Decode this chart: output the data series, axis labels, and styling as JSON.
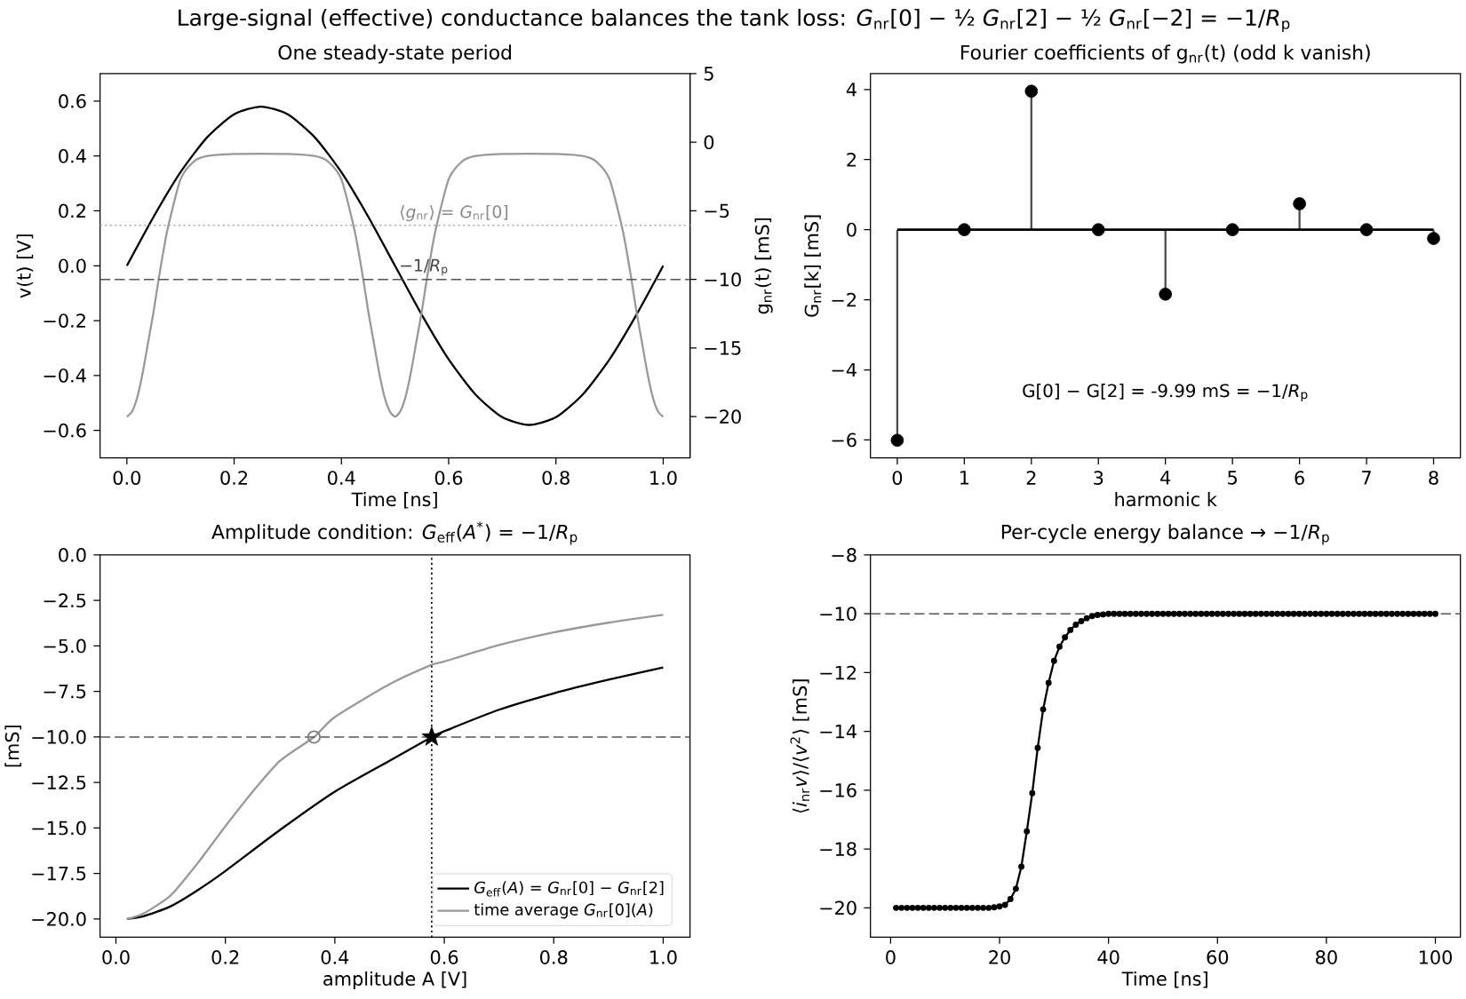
{
  "chart_data": [
    {
      "type": "line",
      "title": "Large-signal (effective) conductance balances the tank loss: *G*$_{nr}$[0] − ½ *G*$_{nr}$[2] − ½ *G*$_{nr}$[−2] = −1/*R*$_{p}$",
      "subtitle": "One steady-state period",
      "xlabel": "Time [ns]",
      "ylabel": "v(t) [V]",
      "y2label": "g$_{nr}$(t) [mS]",
      "xlim": [
        -0.05,
        1.05
      ],
      "xticks": [
        {
          "value": 0,
          "label": "0.0"
        },
        {
          "value": 0.2,
          "label": "0.2"
        },
        {
          "value": 0.4,
          "label": "0.4"
        },
        {
          "value": 0.6,
          "label": "0.6"
        },
        {
          "value": 0.8,
          "label": "0.8"
        },
        {
          "value": 1,
          "label": "1.0"
        }
      ],
      "ylim": [
        -0.7,
        0.7
      ],
      "yticks": [
        {
          "value": -0.6,
          "label": "−0.6"
        },
        {
          "value": -0.4,
          "label": "−0.4"
        },
        {
          "value": -0.2,
          "label": "−0.2"
        },
        {
          "value": 0,
          "label": "0.0"
        },
        {
          "value": 0.2,
          "label": "0.2"
        },
        {
          "value": 0.4,
          "label": "0.4"
        },
        {
          "value": 0.6,
          "label": "0.6"
        }
      ],
      "y2lim": [
        -23,
        5
      ],
      "y2ticks": [
        5,
        0,
        {
          "value": -5,
          "label": "−5"
        },
        {
          "value": -10,
          "label": "−10"
        },
        {
          "value": -15,
          "label": "−15"
        },
        {
          "value": -20,
          "label": "−20"
        }
      ],
      "series": [
        {
          "color": "#000000",
          "x": [
            0,
            0.05,
            0.1,
            0.15,
            0.2,
            0.25,
            0.3,
            0.35,
            0.4,
            0.45,
            0.5,
            0.55,
            0.6,
            0.65,
            0.7,
            0.75,
            0.8,
            0.85,
            0.9,
            0.95,
            1.0
          ],
          "values": [
            0,
            0.179,
            0.341,
            0.469,
            0.552,
            0.58,
            0.552,
            0.469,
            0.341,
            0.179,
            0,
            -0.179,
            -0.341,
            -0.469,
            -0.552,
            -0.58,
            -0.552,
            -0.469,
            -0.341,
            -0.179,
            0
          ]
        },
        {
          "color": "#999999",
          "axis": "y2",
          "x": [
            0,
            0.01,
            0.02,
            0.03,
            0.04,
            0.05,
            0.06,
            0.075,
            0.1,
            0.125,
            0.15,
            0.2,
            0.25,
            0.3,
            0.35,
            0.375,
            0.4,
            0.425,
            0.44,
            0.45,
            0.46,
            0.47,
            0.48,
            0.49,
            0.5,
            0.51,
            0.52,
            0.53,
            0.54,
            0.55,
            0.56,
            0.575,
            0.6,
            0.625,
            0.65,
            0.7,
            0.75,
            0.8,
            0.85,
            0.875,
            0.9,
            0.925,
            0.94,
            0.95,
            0.96,
            0.97,
            0.98,
            0.99,
            1.0
          ],
          "values": [
            -20,
            -19.6,
            -18.5,
            -16.7,
            -14.5,
            -12.3,
            -9.8,
            -6.5,
            -2.7,
            -1.4,
            -1.0,
            -0.85,
            -0.83,
            -0.85,
            -1.0,
            -1.4,
            -2.7,
            -6.5,
            -9.8,
            -12.3,
            -14.5,
            -16.7,
            -18.5,
            -19.6,
            -20,
            -19.6,
            -18.5,
            -16.7,
            -14.5,
            -12.3,
            -9.8,
            -6.5,
            -2.7,
            -1.4,
            -1.0,
            -0.85,
            -0.83,
            -0.85,
            -1.0,
            -1.4,
            -2.7,
            -6.5,
            -9.8,
            -12.3,
            -14.5,
            -16.7,
            -18.5,
            -19.6,
            -20
          ]
        }
      ],
      "ref_lines": [
        {
          "axis": "y2",
          "value": -6.05,
          "label": "⟨*g*$_{nr}$⟩ = *G*$_{nr}$[0]",
          "color": "#aaaaaa",
          "line_style": "dotted"
        },
        {
          "axis": "y2",
          "value": -10,
          "label": "−1/*R*$_{p}$",
          "color": "#555555",
          "line_style": "dashed"
        }
      ]
    },
    {
      "type": "lollipop",
      "title": "Fourier coefficients of g$_{nr}$(t)  (odd k vanish)",
      "xlabel": "harmonic k",
      "ylabel": "G$_{nr}$[k] [mS]",
      "x": [
        0,
        1,
        2,
        3,
        4,
        5,
        6,
        7,
        8
      ],
      "xlim": [
        -0.4,
        8.4
      ],
      "xticks": [
        0,
        1,
        2,
        3,
        4,
        5,
        6,
        7,
        8
      ],
      "ylim": [
        -6.51,
        4.45
      ],
      "yticks": [
        {
          "value": -6,
          "label": "−6"
        },
        {
          "value": -4,
          "label": "−4"
        },
        {
          "value": -2,
          "label": "−2"
        },
        0,
        2,
        4
      ],
      "series": [
        {
          "color": "#000000",
          "values": [
            -6.01,
            0,
            3.95,
            0,
            -1.84,
            0,
            0.74,
            0,
            -0.25
          ]
        }
      ],
      "annotations": [
        "G[0] − G[2] = -9.99 mS = −1/*R*$_{p}$"
      ]
    },
    {
      "type": "line",
      "title": "Amplitude condition: *G*$_{eff}$(*A*$^{*}$) = −1/*R*$_{p}$",
      "xlabel": "amplitude A [V]",
      "ylabel": "[mS]",
      "legend": "bottom right",
      "xlim": [
        -0.029,
        1.049
      ],
      "xticks": [
        {
          "value": 0,
          "label": "0.0"
        },
        {
          "value": 0.2,
          "label": "0.2"
        },
        {
          "value": 0.4,
          "label": "0.4"
        },
        {
          "value": 0.6,
          "label": "0.6"
        },
        {
          "value": 0.8,
          "label": "0.8"
        },
        {
          "value": 1,
          "label": "1.0"
        }
      ],
      "ylim": [
        -21,
        0
      ],
      "yticks": [
        {
          "value": -20,
          "label": "−20.0"
        },
        {
          "value": -17.5,
          "label": "−17.5"
        },
        {
          "value": -15,
          "label": "−15.0"
        },
        {
          "value": -12.5,
          "label": "−12.5"
        },
        {
          "value": -10,
          "label": "−10.0"
        },
        {
          "value": -7.5,
          "label": "−7.5"
        },
        {
          "value": -5,
          "label": "−5.0"
        },
        {
          "value": -2.5,
          "label": "−2.5"
        },
        {
          "value": 0,
          "label": "0.0"
        }
      ],
      "series": [
        {
          "name": "*G*$_{eff}$(*A*) = *G*$_{nr}$[0] − *G*$_{nr}$[2]",
          "color": "#000000",
          "x": [
            0.02,
            0.05,
            0.1,
            0.15,
            0.2,
            0.3,
            0.4,
            0.5,
            0.577,
            0.6,
            0.7,
            0.8,
            0.9,
            1.0
          ],
          "values": [
            -20,
            -19.85,
            -19.3,
            -18.4,
            -17.36,
            -15.1,
            -13.0,
            -11.3,
            -10,
            -9.68,
            -8.5,
            -7.6,
            -6.85,
            -6.18
          ]
        },
        {
          "name": "time average *G*$_{nr}$[0](*A*)",
          "color": "#999999",
          "x": [
            0.02,
            0.05,
            0.1,
            0.15,
            0.2,
            0.25,
            0.3,
            0.362,
            0.4,
            0.5,
            0.577,
            0.6,
            0.7,
            0.8,
            0.9,
            1.0
          ],
          "values": [
            -20,
            -19.7,
            -18.7,
            -16.9,
            -14.9,
            -13.0,
            -11.3,
            -10,
            -8.9,
            -7.1,
            -6.03,
            -5.85,
            -4.95,
            -4.25,
            -3.72,
            -3.29
          ]
        },
        {
          "type": "scatter",
          "marker": "star",
          "color": "#000000",
          "x": [
            0.577
          ],
          "values": [
            -10
          ]
        },
        {
          "type": "scatter",
          "marker": "circle",
          "color": "#808080",
          "x": [
            0.362
          ],
          "values": [
            -10
          ]
        }
      ],
      "ref_lines": [
        {
          "axis": "y",
          "value": -10,
          "color": "#555555",
          "line_style": "dashed"
        },
        {
          "axis": "x",
          "value": 0.577,
          "color": "#000000",
          "line_style": "dotted"
        }
      ]
    },
    {
      "type": "line",
      "marker": "circle",
      "title": "Per-cycle energy balance  → −1/*R*$_{p}$",
      "xlabel": "Time [ns]",
      "ylabel": "⟨*i*$_{nr}$*v*⟩/⟨*v*$^{2}$⟩  [mS]",
      "xlim": [
        -3.7,
        104.6
      ],
      "xticks": [
        0,
        20,
        40,
        60,
        80,
        100
      ],
      "ylim": [
        -21,
        -8
      ],
      "yticks": [
        {
          "value": -20,
          "label": "−20"
        },
        {
          "value": -18,
          "label": "−18"
        },
        {
          "value": -16,
          "label": "−16"
        },
        {
          "value": -14,
          "label": "−14"
        },
        {
          "value": -12,
          "label": "−12"
        },
        {
          "value": -10,
          "label": "−10"
        },
        {
          "value": -8,
          "label": "−8"
        }
      ],
      "x": [
        1,
        2,
        3,
        4,
        5,
        6,
        7,
        8,
        9,
        10,
        11,
        12,
        13,
        14,
        15,
        16,
        17,
        18,
        19,
        20,
        21,
        22,
        23,
        24,
        25,
        26,
        27,
        28,
        29,
        30,
        31,
        32,
        33,
        34,
        35,
        36,
        37,
        38,
        39,
        40,
        41,
        42,
        43,
        44,
        45,
        46,
        47,
        48,
        49,
        50,
        51,
        52,
        53,
        54,
        55,
        56,
        57,
        58,
        59,
        60,
        61,
        62,
        63,
        64,
        65,
        66,
        67,
        68,
        69,
        70,
        71,
        72,
        73,
        74,
        75,
        76,
        77,
        78,
        79,
        80,
        81,
        82,
        83,
        84,
        85,
        86,
        87,
        88,
        89,
        90,
        91,
        92,
        93,
        94,
        95,
        96,
        97,
        98,
        99,
        100
      ],
      "series": [
        {
          "color": "#000000",
          "values": [
            -20,
            -20,
            -20,
            -20,
            -20,
            -20,
            -20,
            -20,
            -20,
            -20,
            -20,
            -20,
            -20,
            -20,
            -20,
            -20,
            -20,
            -20,
            -19.98,
            -19.95,
            -19.9,
            -19.7,
            -19.35,
            -18.6,
            -17.4,
            -16.1,
            -14.56,
            -13.25,
            -12.35,
            -11.6,
            -11.12,
            -10.8,
            -10.55,
            -10.37,
            -10.25,
            -10.15,
            -10.08,
            -10.04,
            -10.02,
            -10,
            -10,
            -10,
            -10,
            -10,
            -10,
            -10,
            -10,
            -10,
            -10,
            -10,
            -10,
            -10,
            -10,
            -10,
            -10,
            -10,
            -10,
            -10,
            -10,
            -10,
            -10,
            -10,
            -10,
            -10,
            -10,
            -10,
            -10,
            -10,
            -10,
            -10,
            -10,
            -10,
            -10,
            -10,
            -10,
            -10,
            -10,
            -10,
            -10,
            -10,
            -10,
            -10,
            -10,
            -10,
            -10,
            -10,
            -10,
            -10,
            -10,
            -10,
            -10,
            -10,
            -10,
            -10,
            -10,
            -10,
            -10,
            -10,
            -10,
            -10
          ]
        }
      ],
      "ref_lines": [
        {
          "axis": "y",
          "value": -10,
          "color": "#555555",
          "line_style": "dashed"
        }
      ]
    }
  ]
}
